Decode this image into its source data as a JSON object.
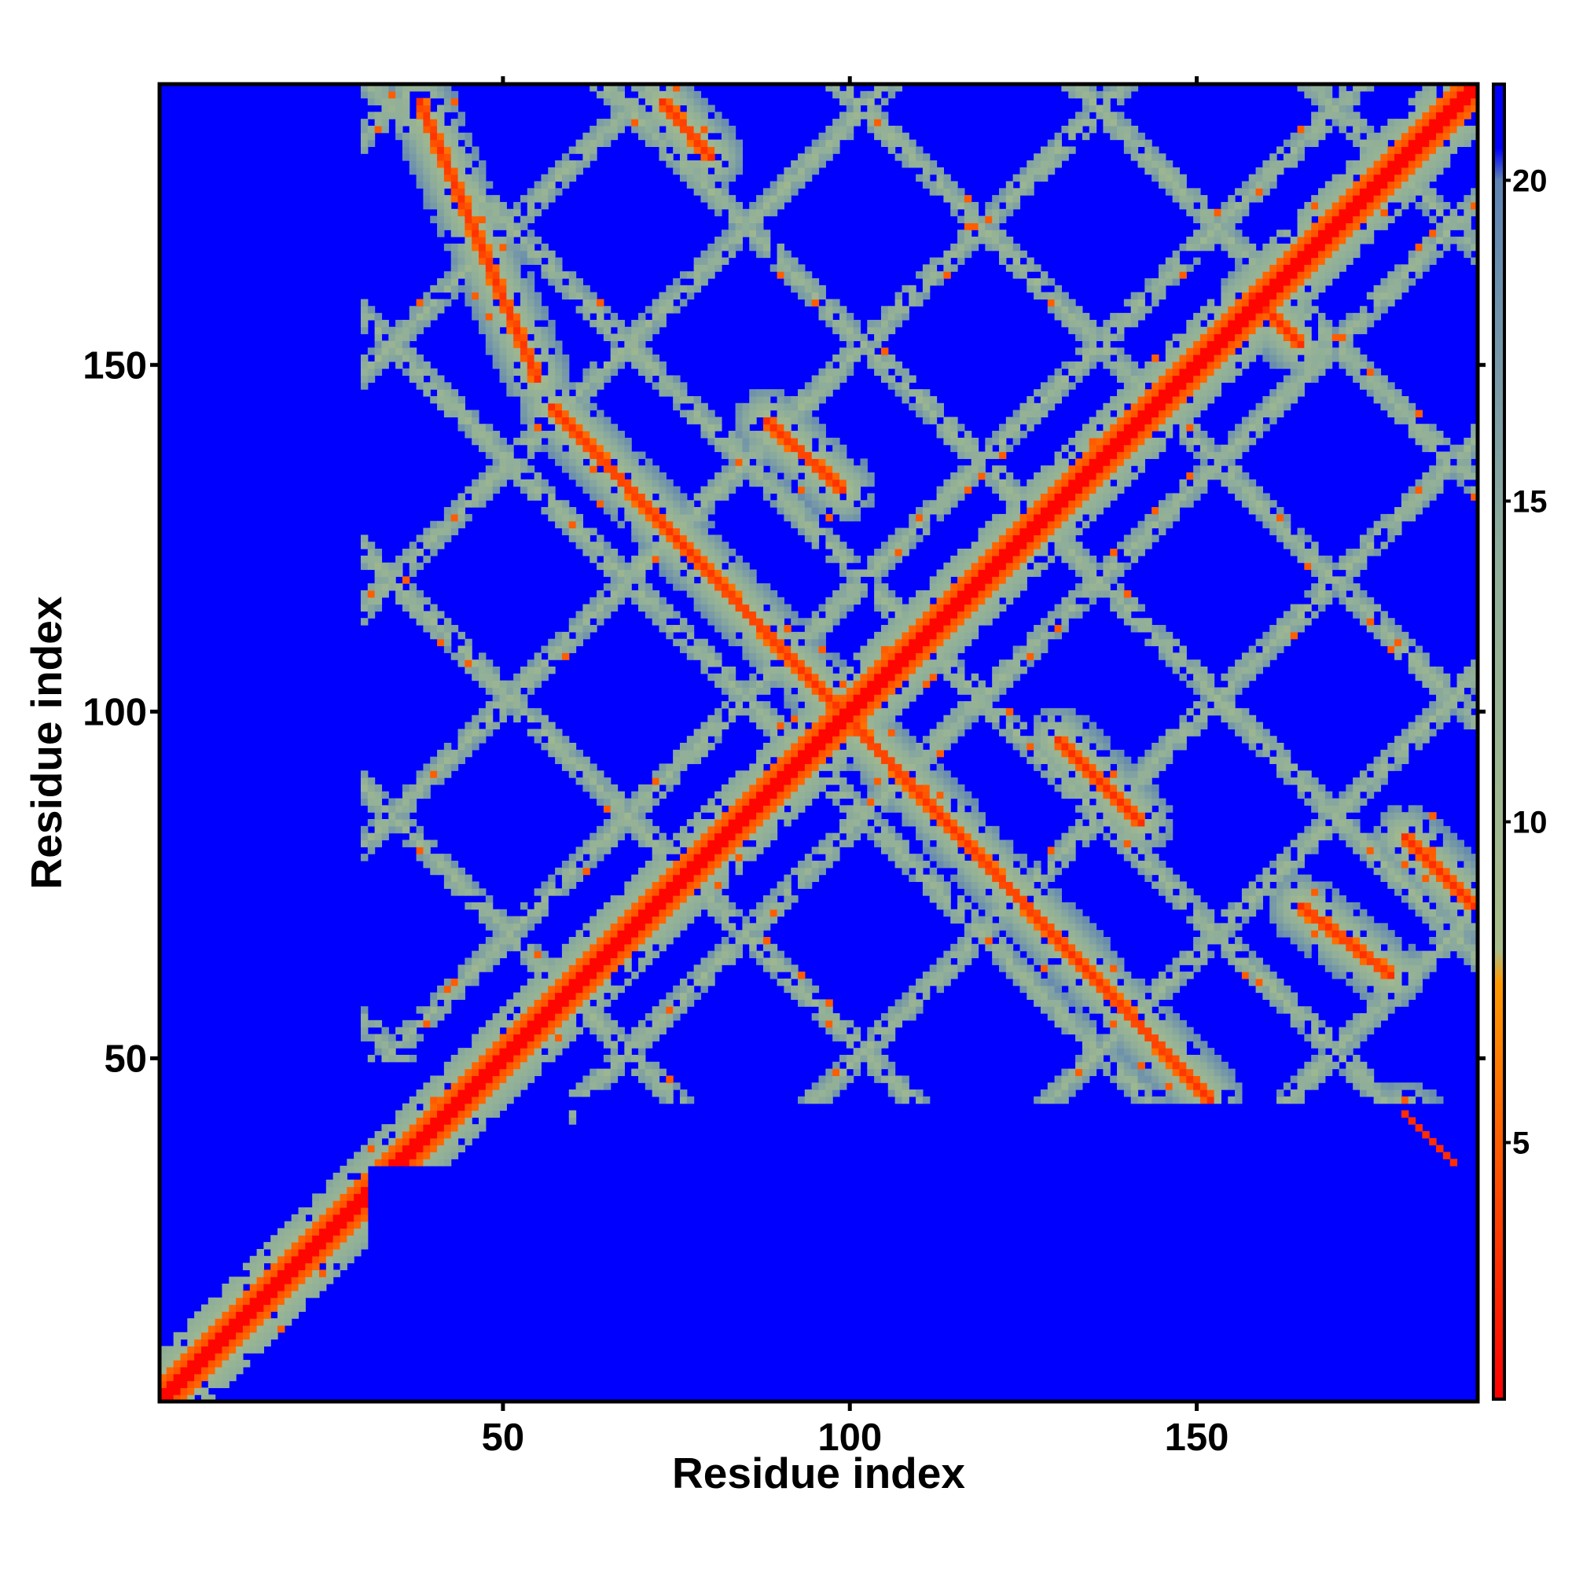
{
  "chart_data": {
    "type": "heatmap",
    "title": "",
    "xlabel": "Residue index",
    "ylabel": "Residue index",
    "n_residues": 190,
    "xlim": [
      1,
      190
    ],
    "ylim": [
      1,
      190
    ],
    "x_ticks": [
      "50",
      "100",
      "150"
    ],
    "x_tick_values": [
      50,
      100,
      150
    ],
    "y_ticks": [
      "50",
      "100",
      "150"
    ],
    "y_tick_values": [
      50,
      100,
      150
    ],
    "colorbar": {
      "ticks": [
        "5",
        "10",
        "15",
        "20"
      ],
      "tick_values": [
        5,
        10,
        15,
        20
      ],
      "range": [
        1,
        21.5
      ],
      "colors": [
        {
          "value": 1,
          "color": "#ff0000"
        },
        {
          "value": 4,
          "color": "#ff4400"
        },
        {
          "value": 7.5,
          "color": "#ff9900"
        },
        {
          "value": 8,
          "color": "#a8bd8a"
        },
        {
          "value": 14,
          "color": "#8fae9a"
        },
        {
          "value": 20,
          "color": "#5f84b4"
        },
        {
          "value": 20.5,
          "color": "#0000ff"
        },
        {
          "value": 21.5,
          "color": "#0000ff"
        }
      ]
    },
    "background_color": "#0000ff",
    "description_of_pattern": [
      {
        "kind": "main-diagonal",
        "from": [
          1,
          1
        ],
        "to": [
          190,
          190
        ],
        "value": 1.5
      },
      {
        "kind": "anti-diagonal-band",
        "from": [
          57,
          144
        ],
        "to": [
          152,
          44
        ],
        "value": 4
      },
      {
        "kind": "anti-diagonal-band",
        "from": [
          38,
          188
        ],
        "to": [
          55,
          148
        ],
        "value": 4
      },
      {
        "kind": "anti-diagonal-band",
        "from": [
          88,
          142
        ],
        "to": [
          99,
          132
        ],
        "value": 4
      },
      {
        "kind": "anti-diagonal-band",
        "from": [
          130,
          96
        ],
        "to": [
          142,
          84
        ],
        "value": 4
      },
      {
        "kind": "anti-diagonal-band",
        "from": [
          165,
          72
        ],
        "to": [
          178,
          62
        ],
        "value": 4
      },
      {
        "kind": "anti-diagonal-band",
        "from": [
          180,
          82
        ],
        "to": [
          190,
          72
        ],
        "value": 4
      },
      {
        "kind": "anti-diagonal-band",
        "from": [
          180,
          42
        ],
        "to": [
          190,
          32
        ],
        "value": 4
      },
      {
        "kind": "anti-diagonal-band",
        "from": [
          73,
          188
        ],
        "to": [
          80,
          180
        ],
        "value": 4
      },
      {
        "kind": "anti-diagonal-band",
        "from": [
          158,
          160
        ],
        "to": [
          165,
          153
        ],
        "value": 4
      }
    ]
  }
}
